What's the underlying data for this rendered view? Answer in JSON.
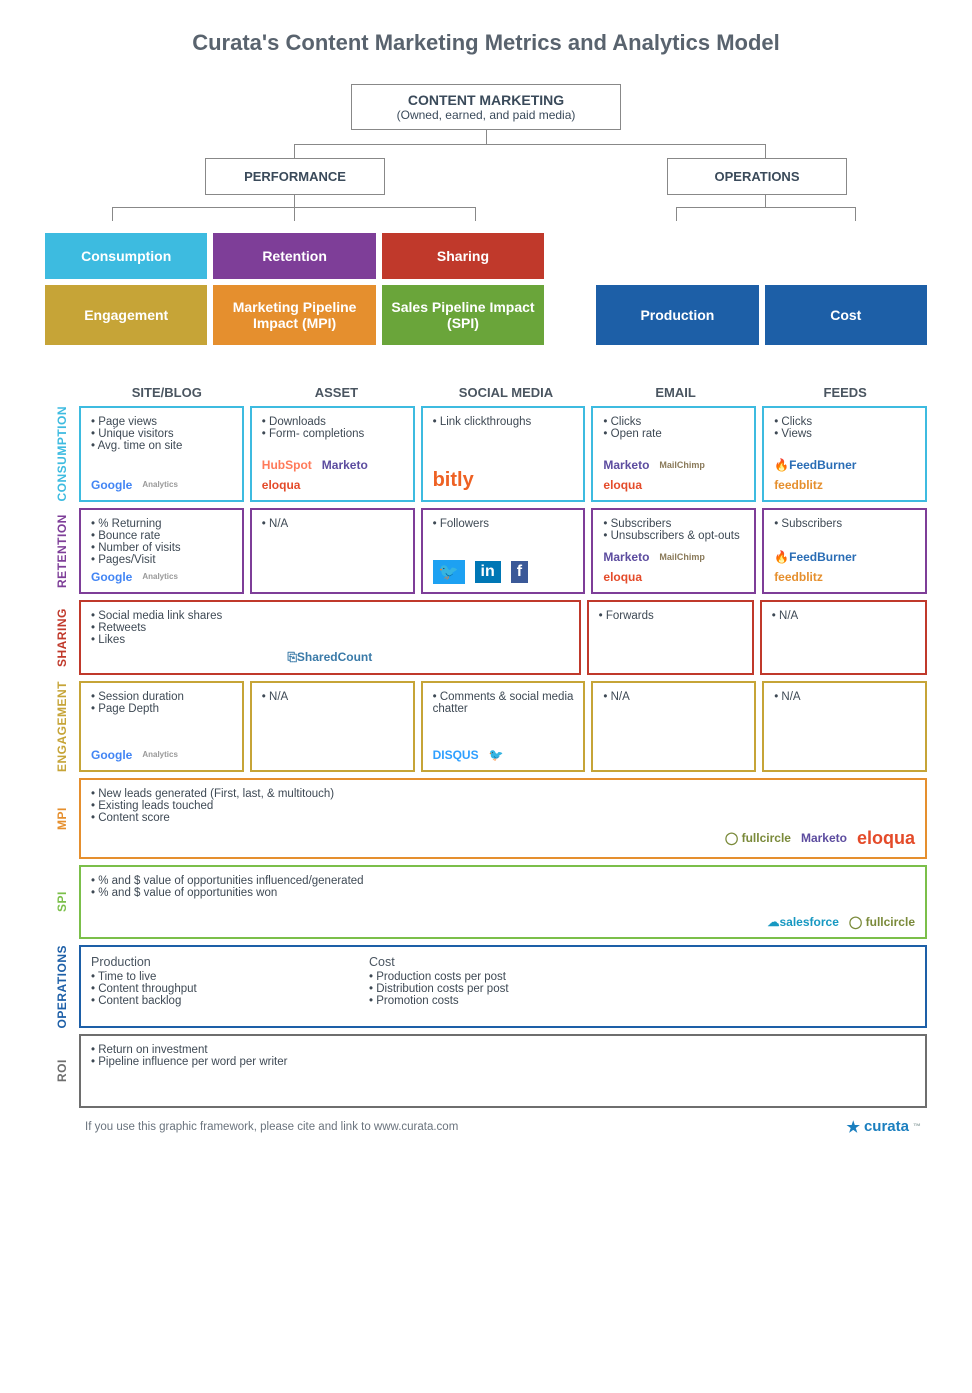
{
  "title": "Curata's Content Marketing Metrics and Analytics Model",
  "hierarchy": {
    "root": {
      "title": "CONTENT MARKETING",
      "subtitle": "(Owned, earned, and paid media)"
    },
    "mid": {
      "performance": "PERFORMANCE",
      "operations": "OPERATIONS"
    },
    "tiles": [
      {
        "label": "Consumption",
        "color": "#3dbbe0"
      },
      {
        "label": "Retention",
        "color": "#7e3e98"
      },
      {
        "label": "Sharing",
        "color": "#c0392b"
      },
      {
        "label": "Engagement",
        "color": "#c6a437"
      },
      {
        "label": "Marketing Pipeline Impact (MPI)",
        "color": "#e58f2e"
      },
      {
        "label": "Sales Pipeline Impact (SPI)",
        "color": "#6aa53a"
      },
      {
        "label": "Production",
        "color": "#1d5fa7"
      },
      {
        "label": "Cost",
        "color": "#1d5fa7"
      }
    ]
  },
  "colors": {
    "consumption": "#3dbbe0",
    "retention": "#7e3e98",
    "sharing": "#c0392b",
    "engagement": "#c6a437",
    "mpi": "#e58f2e",
    "spi": "#7bbf4a",
    "operations": "#1d5fa7",
    "roi": "#6e6e6e"
  },
  "columns": [
    "SITE/BLOG",
    "ASSET",
    "SOCIAL MEDIA",
    "EMAIL",
    "FEEDS"
  ],
  "rows": [
    {
      "key": "consumption",
      "label": "CONSUMPTION",
      "layout": "cells5",
      "cells": [
        {
          "items": [
            "Page views",
            "Unique visitors",
            "Avg. time on site"
          ],
          "logos": [
            {
              "text": "Google",
              "color": "#4285f4"
            },
            {
              "text": "Analytics",
              "color": "#999",
              "size": "8px"
            }
          ]
        },
        {
          "items": [
            "Downloads",
            "Form- completions"
          ],
          "logos": [
            {
              "text": "HubSpot",
              "color": "#ff7a59"
            },
            {
              "text": "Marketo",
              "color": "#5c4c9f"
            },
            {
              "text": "eloqua",
              "color": "#e44b2a"
            }
          ]
        },
        {
          "items": [
            "Link clickthroughs"
          ],
          "logos": [
            {
              "text": "bitly",
              "color": "#ee6123",
              "size": "20px"
            }
          ]
        },
        {
          "items": [
            "Clicks",
            "Open rate"
          ],
          "logos": [
            {
              "text": "Marketo",
              "color": "#5c4c9f"
            },
            {
              "text": "MailChimp",
              "color": "#8a7a5a",
              "size": "9px"
            },
            {
              "text": "eloqua",
              "color": "#e44b2a"
            }
          ]
        },
        {
          "items": [
            "Clicks",
            "Views"
          ],
          "logos": [
            {
              "text": "🔥FeedBurner",
              "color": "#2a6db5"
            },
            {
              "text": "feedblitz",
              "color": "#e58f2e"
            }
          ]
        }
      ]
    },
    {
      "key": "retention",
      "label": "RETENTION",
      "layout": "cells5",
      "cells": [
        {
          "items": [
            "% Returning",
            "Bounce rate",
            "Number of visits",
            "Pages/Visit"
          ],
          "logos": [
            {
              "text": "Google",
              "color": "#4285f4"
            },
            {
              "text": "Analytics",
              "color": "#999",
              "size": "8px"
            }
          ]
        },
        {
          "items": [
            "N/A"
          ]
        },
        {
          "items": [
            "Followers"
          ],
          "logos": [
            {
              "text": "🐦",
              "color": "#1da1f2",
              "bg": "#1da1f2",
              "size": "16px"
            },
            {
              "text": "in",
              "color": "#fff",
              "bg": "#0077b5",
              "size": "16px"
            },
            {
              "text": "f",
              "color": "#fff",
              "bg": "#3b5998",
              "size": "16px"
            }
          ]
        },
        {
          "items": [
            "Subscribers",
            "Unsubscribers & opt-outs"
          ],
          "logos": [
            {
              "text": "Marketo",
              "color": "#5c4c9f"
            },
            {
              "text": "MailChimp",
              "color": "#8a7a5a",
              "size": "9px"
            },
            {
              "text": "eloqua",
              "color": "#e44b2a"
            }
          ]
        },
        {
          "items": [
            "Subscribers"
          ],
          "logos": [
            {
              "text": "🔥FeedBurner",
              "color": "#2a6db5"
            },
            {
              "text": "feedblitz",
              "color": "#e58f2e"
            }
          ]
        }
      ]
    },
    {
      "key": "sharing",
      "label": "SHARING",
      "layout": "cells3_2",
      "cells": [
        {
          "items": [
            "Social media link shares",
            "Retweets",
            "Likes"
          ],
          "logos": [
            {
              "text": "⎘SharedCount",
              "color": "#3a7aa8"
            }
          ],
          "logoAlign": "center"
        },
        {
          "items": [
            "Forwards"
          ]
        },
        {
          "items": [
            "N/A"
          ]
        }
      ]
    },
    {
      "key": "engagement",
      "label": "ENGAGEMENT",
      "layout": "cells5",
      "cells": [
        {
          "items": [
            "Session duration",
            "Page Depth"
          ],
          "logos": [
            {
              "text": "Google",
              "color": "#4285f4"
            },
            {
              "text": "Analytics",
              "color": "#999",
              "size": "8px"
            }
          ]
        },
        {
          "items": [
            "N/A"
          ]
        },
        {
          "items": [
            "Comments & social media chatter"
          ],
          "logos": [
            {
              "text": "DISQUS",
              "color": "#2e9fff"
            },
            {
              "text": "🐦",
              "color": "#1da1f2"
            }
          ]
        },
        {
          "items": [
            "N/A"
          ]
        },
        {
          "items": [
            "N/A"
          ]
        }
      ]
    },
    {
      "key": "mpi",
      "label": "MPI",
      "layout": "cells1",
      "cells": [
        {
          "items": [
            "New leads generated (First, last, & multitouch)",
            "Existing leads touched",
            "Content score"
          ],
          "logos": [
            {
              "text": "◯ fullcircle",
              "color": "#7a8a3a"
            },
            {
              "text": "Marketo",
              "color": "#5c4c9f"
            },
            {
              "text": "eloqua",
              "color": "#e44b2a",
              "size": "18px"
            }
          ],
          "logoAlign": "right"
        }
      ]
    },
    {
      "key": "spi",
      "label": "SPI",
      "layout": "cells1",
      "cells": [
        {
          "items": [
            "% and $ value of opportunities influenced/generated",
            "% and $ value of opportunities won"
          ],
          "logos": [
            {
              "text": "☁salesforce",
              "color": "#1798c1"
            },
            {
              "text": "◯ fullcircle",
              "color": "#7a8a3a"
            }
          ],
          "logoAlign": "right"
        }
      ]
    },
    {
      "key": "operations",
      "label": "OPERATIONS",
      "layout": "cells1",
      "cells": [
        {
          "ops": {
            "left": {
              "heading": "Production",
              "items": [
                "Time to live",
                "Content throughput",
                "Content backlog"
              ]
            },
            "right": {
              "heading": "Cost",
              "items": [
                "Production costs per post",
                "Distribution costs per post",
                "Promotion costs"
              ]
            }
          }
        }
      ]
    },
    {
      "key": "roi",
      "label": "ROI",
      "layout": "cells1",
      "cells": [
        {
          "items": [
            "Return on investment",
            "Pipeline influence per word per writer"
          ]
        }
      ]
    }
  ],
  "footer": {
    "citation": "If you use this graphic framework, please cite and link to www.curata.com",
    "brand": "curata"
  }
}
